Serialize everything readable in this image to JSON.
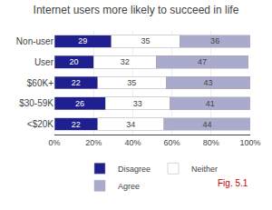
{
  "chart_data": {
    "type": "bar",
    "orientation": "horizontal",
    "stacked": true,
    "title": "Internet users more likely to succeed in life",
    "categories": [
      "<$20K",
      "$30-59K",
      "$60K+",
      "User",
      "Non-user"
    ],
    "series": [
      {
        "name": "Disagree",
        "color": "#1F1F8F",
        "values": [
          22,
          26,
          22,
          20,
          29
        ]
      },
      {
        "name": "Neither",
        "color": "#FFFFFF",
        "values": [
          34,
          33,
          35,
          32,
          35
        ]
      },
      {
        "name": "Agree",
        "color": "#AAAACC",
        "values": [
          44,
          41,
          43,
          47,
          36
        ]
      }
    ],
    "xlim": [
      0,
      100
    ],
    "xticks": [
      {
        "value": 0,
        "label": "0%"
      },
      {
        "value": 20,
        "label": "20%"
      },
      {
        "value": 40,
        "label": "40%"
      },
      {
        "value": 60,
        "label": "60%"
      },
      {
        "value": 80,
        "label": "80%"
      },
      {
        "value": 100,
        "label": "100%"
      }
    ],
    "grid": true,
    "data_labels": true,
    "legend": "bottom",
    "annotations": [
      {
        "text": "Fig. 5.1",
        "color": "#CC0000"
      }
    ]
  }
}
